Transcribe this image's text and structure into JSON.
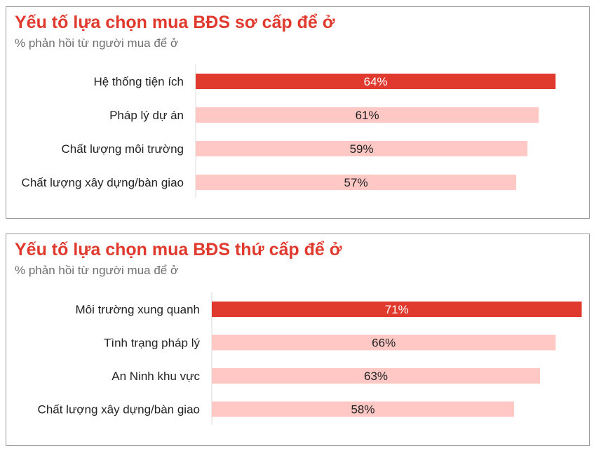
{
  "colors": {
    "accent": "#e03a2f",
    "bar_primary": "#e03a2f",
    "bar_secondary": "#ffc8c5",
    "title": "#e03a2f",
    "subtitle": "#6e6e6e"
  },
  "chart_data": [
    {
      "type": "bar",
      "orientation": "horizontal",
      "title": "Yếu tố lựa chọn mua BĐS sơ cấp để ở",
      "subtitle": "% phản hồi từ người mua để ở",
      "categories": [
        "Hệ thống tiện ích",
        "Pháp lý dự án",
        "Chất lượng môi trường",
        "Chất lượng xây dựng/bàn giao"
      ],
      "values": [
        64,
        61,
        59,
        57
      ],
      "data_labels": [
        "64%",
        "61%",
        "59%",
        "57%"
      ],
      "value_unit": "%",
      "grid": false,
      "legend": "none"
    },
    {
      "type": "bar",
      "orientation": "horizontal",
      "title": "Yếu tố lựa chọn mua BĐS thứ cấp để ở",
      "subtitle": "% phản hồi từ người mua để ở",
      "categories": [
        "Môi trường xung quanh",
        "Tình trạng pháp lý",
        "An Ninh khu vực",
        "Chất lượng xây dựng/bàn giao"
      ],
      "values": [
        71,
        66,
        63,
        58
      ],
      "data_labels": [
        "71%",
        "66%",
        "63%",
        "58%"
      ],
      "value_unit": "%",
      "grid": false,
      "legend": "none"
    }
  ]
}
